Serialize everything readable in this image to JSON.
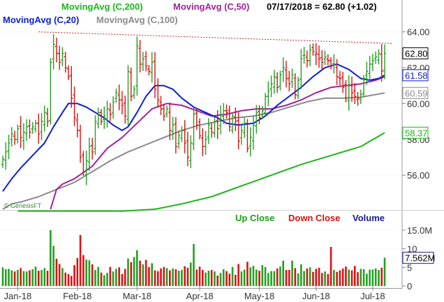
{
  "header": {
    "ma200": "MovingAvg (C,200)",
    "ma50": "MovingAvg (C,50)",
    "quote": "07/17/2018 = 62.80 (+1.02)",
    "ma20": "MovingAvg (C,20)",
    "ma100": "MovingAvg (C,100)"
  },
  "watermark": "© GenesisFT",
  "volume_legend": {
    "up": "Up Close",
    "down": "Down Close",
    "volume": "Volume"
  },
  "colors": {
    "up": "#22a022",
    "down": "#dd1111",
    "ma200": "#19b819",
    "ma50": "#a0229f",
    "ma20": "#0b1fd6",
    "ma100": "#8a8a8a",
    "volume": "#1a1a8c",
    "resistance": "#cc2222"
  },
  "chart_data": [
    {
      "type": "candlestick",
      "ylim": [
        54.1,
        65.0
      ],
      "yticks": [
        "64.00",
        "62.00",
        "60.00",
        "58.00",
        "56.00"
      ],
      "ytick_values": [
        64,
        62,
        60,
        58,
        56
      ],
      "xticks": [
        "Jan-18",
        "Feb-18",
        "Mar-18",
        "Apr-18",
        "May-18",
        "Jun-18",
        "Jul-18"
      ],
      "xtick_index": [
        5,
        25,
        45,
        66,
        86,
        105,
        124
      ],
      "price_tags": [
        {
          "label": "62.80",
          "value": 62.8,
          "color": "#000000"
        },
        {
          "label": "61.58",
          "value": 61.58,
          "color": "#0b1fd6"
        },
        {
          "label": "60.59",
          "value": 60.59,
          "color": "#8a8a8a"
        },
        {
          "label": "58.37",
          "value": 58.37,
          "color": "#19b819"
        }
      ],
      "resistance": [
        64.0,
        63.35
      ],
      "close": [
        56.9,
        57.3,
        57.8,
        58.3,
        58.0,
        58.6,
        58.1,
        58.4,
        58.7,
        58.4,
        58.7,
        58.9,
        58.3,
        59.0,
        59.5,
        59.0,
        62.3,
        63.3,
        62.8,
        62.3,
        62.8,
        62.0,
        61.5,
        60.3,
        59.2,
        58.5,
        57.0,
        56.2,
        56.8,
        57.6,
        57.3,
        59.0,
        59.5,
        59.0,
        59.3,
        59.7,
        59.4,
        60.1,
        60.6,
        60.2,
        59.9,
        59.3,
        61.8,
        60.4,
        60.8,
        63.2,
        62.2,
        62.5,
        62.1,
        61.8,
        62.3,
        60.8,
        60.2,
        59.7,
        59.3,
        59.7,
        58.5,
        58.8,
        57.6,
        58.2,
        58.5,
        57.8,
        57.0,
        57.8,
        59.4,
        58.8,
        58.2,
        57.6,
        58.0,
        58.8,
        58.4,
        59.0,
        58.6,
        59.4,
        59.6,
        59.5,
        58.7,
        59.3,
        59.0,
        57.9,
        58.5,
        58.9,
        57.5,
        58.1,
        58.8,
        59.5,
        59.2,
        59.6,
        60.4,
        60.7,
        61.1,
        61.5,
        60.9,
        61.6,
        62.0,
        61.4,
        61.1,
        61.6,
        60.5,
        61.3,
        62.5,
        62.7,
        62.4,
        63.0,
        62.9,
        62.8,
        62.5,
        62.3,
        62.6,
        62.4,
        62.1,
        62.2,
        61.5,
        61.4,
        60.9,
        60.3,
        61.0,
        60.6,
        60.4,
        60.3,
        60.5,
        61.4,
        61.8,
        62.2,
        62.4,
        62.6,
        62.8,
        61.8,
        62.8
      ],
      "volume_m": [
        5.0,
        4.5,
        4.6,
        4.2,
        3.9,
        4.3,
        4.8,
        4.0,
        3.9,
        4.2,
        4.5,
        5.2,
        4.1,
        4.3,
        4.8,
        4.1,
        15.0,
        10.8,
        7.3,
        5.9,
        4.8,
        3.6,
        3.2,
        2.7,
        5.6,
        7.5,
        13.7,
        8.3,
        7.1,
        6.9,
        5.8,
        4.3,
        5.1,
        3.6,
        2.9,
        3.5,
        5.1,
        3.9,
        4.6,
        5.0,
        3.2,
        4.6,
        7.4,
        6.4,
        7.8,
        9.6,
        6.8,
        5.8,
        7.0,
        5.1,
        6.1,
        4.2,
        4.0,
        4.7,
        5.1,
        4.8,
        4.2,
        4.7,
        4.5,
        4.1,
        4.3,
        5.3,
        4.9,
        6.3,
        11.3,
        4.4,
        5.2,
        4.3,
        3.6,
        4.1,
        4.3,
        3.9,
        2.8,
        3.5,
        4.5,
        4.0,
        3.3,
        5.1,
        3.0,
        5.9,
        3.9,
        4.4,
        6.5,
        5.0,
        5.4,
        4.4,
        4.1,
        5.6,
        5.1,
        3.5,
        4.0,
        4.0,
        4.7,
        5.2,
        6.8,
        4.3,
        4.3,
        6.8,
        4.8,
        3.4,
        5.8,
        4.0,
        4.7,
        5.0,
        3.8,
        4.6,
        4.9,
        3.5,
        3.9,
        3.2,
        10.5,
        4.3,
        3.8,
        4.2,
        4.7,
        5.2,
        4.4,
        4.2,
        5.4,
        3.7,
        4.6,
        4.5,
        3.3,
        4.4,
        4.4,
        4.7,
        4.3,
        4.9,
        7.6
      ],
      "ma200": [
        {
          "i": 5,
          "v": 54.0
        },
        {
          "i": 20,
          "v": 54.0
        },
        {
          "i": 40,
          "v": 54.0
        },
        {
          "i": 51,
          "v": 54.1
        },
        {
          "i": 60,
          "v": 54.4
        },
        {
          "i": 70,
          "v": 54.8
        },
        {
          "i": 80,
          "v": 55.4
        },
        {
          "i": 90,
          "v": 56.0
        },
        {
          "i": 100,
          "v": 56.6
        },
        {
          "i": 110,
          "v": 57.1
        },
        {
          "i": 120,
          "v": 57.6
        },
        {
          "i": 128,
          "v": 58.37
        }
      ],
      "ma100": [
        {
          "i": 0,
          "v": 54.1
        },
        {
          "i": 3,
          "v": 54.4
        },
        {
          "i": 6,
          "v": 54.5
        },
        {
          "i": 12,
          "v": 54.8
        },
        {
          "i": 18,
          "v": 55.2
        },
        {
          "i": 24,
          "v": 55.6
        },
        {
          "i": 30,
          "v": 56.2
        },
        {
          "i": 36,
          "v": 56.8
        },
        {
          "i": 42,
          "v": 57.3
        },
        {
          "i": 48,
          "v": 57.7
        },
        {
          "i": 54,
          "v": 58.1
        },
        {
          "i": 60,
          "v": 58.5
        },
        {
          "i": 66,
          "v": 58.8
        },
        {
          "i": 72,
          "v": 59.0
        },
        {
          "i": 78,
          "v": 59.2
        },
        {
          "i": 84,
          "v": 59.3
        },
        {
          "i": 90,
          "v": 59.5
        },
        {
          "i": 96,
          "v": 59.8
        },
        {
          "i": 102,
          "v": 60.1
        },
        {
          "i": 108,
          "v": 60.3
        },
        {
          "i": 114,
          "v": 60.3
        },
        {
          "i": 120,
          "v": 60.35
        },
        {
          "i": 128,
          "v": 60.59
        }
      ],
      "ma50": [
        {
          "i": 16,
          "v": 54.1
        },
        {
          "i": 18,
          "v": 55.2
        },
        {
          "i": 20,
          "v": 55.5
        },
        {
          "i": 24,
          "v": 55.8
        },
        {
          "i": 30,
          "v": 56.5
        },
        {
          "i": 35,
          "v": 57.5
        },
        {
          "i": 40,
          "v": 58.1
        },
        {
          "i": 45,
          "v": 58.9
        },
        {
          "i": 50,
          "v": 59.7
        },
        {
          "i": 55,
          "v": 60.0
        },
        {
          "i": 60,
          "v": 59.9
        },
        {
          "i": 65,
          "v": 59.6
        },
        {
          "i": 70,
          "v": 59.3
        },
        {
          "i": 75,
          "v": 59.4
        },
        {
          "i": 80,
          "v": 59.6
        },
        {
          "i": 85,
          "v": 59.7
        },
        {
          "i": 90,
          "v": 59.7
        },
        {
          "i": 95,
          "v": 59.9
        },
        {
          "i": 100,
          "v": 60.2
        },
        {
          "i": 105,
          "v": 60.6
        },
        {
          "i": 110,
          "v": 60.9
        },
        {
          "i": 115,
          "v": 61.0
        },
        {
          "i": 120,
          "v": 61.1
        },
        {
          "i": 125,
          "v": 61.3
        },
        {
          "i": 128,
          "v": 61.5
        }
      ],
      "ma20": [
        {
          "i": 0,
          "v": 55.1
        },
        {
          "i": 3,
          "v": 55.8
        },
        {
          "i": 6,
          "v": 56.4
        },
        {
          "i": 10,
          "v": 57.1
        },
        {
          "i": 14,
          "v": 57.8
        },
        {
          "i": 17,
          "v": 58.7
        },
        {
          "i": 20,
          "v": 59.5
        },
        {
          "i": 22,
          "v": 60.0
        },
        {
          "i": 25,
          "v": 60.0
        },
        {
          "i": 28,
          "v": 59.8
        },
        {
          "i": 31,
          "v": 59.5
        },
        {
          "i": 34,
          "v": 59.2
        },
        {
          "i": 37,
          "v": 58.8
        },
        {
          "i": 40,
          "v": 58.5
        },
        {
          "i": 42,
          "v": 58.7
        },
        {
          "i": 45,
          "v": 59.5
        },
        {
          "i": 48,
          "v": 60.4
        },
        {
          "i": 51,
          "v": 61.0
        },
        {
          "i": 54,
          "v": 61.0
        },
        {
          "i": 57,
          "v": 60.8
        },
        {
          "i": 60,
          "v": 60.3
        },
        {
          "i": 64,
          "v": 59.8
        },
        {
          "i": 68,
          "v": 59.5
        },
        {
          "i": 72,
          "v": 59.2
        },
        {
          "i": 75,
          "v": 58.9
        },
        {
          "i": 79,
          "v": 58.8
        },
        {
          "i": 84,
          "v": 58.9
        },
        {
          "i": 88,
          "v": 59.3
        },
        {
          "i": 92,
          "v": 59.9
        },
        {
          "i": 96,
          "v": 60.4
        },
        {
          "i": 100,
          "v": 60.9
        },
        {
          "i": 104,
          "v": 61.5
        },
        {
          "i": 108,
          "v": 62.0
        },
        {
          "i": 112,
          "v": 62.2
        },
        {
          "i": 116,
          "v": 61.9
        },
        {
          "i": 120,
          "v": 61.4
        },
        {
          "i": 123,
          "v": 61.3
        },
        {
          "i": 126,
          "v": 61.4
        },
        {
          "i": 128,
          "v": 61.58
        }
      ]
    },
    {
      "type": "bar",
      "ylim": [
        0,
        16.5
      ],
      "yticks": [
        "15.0M",
        "10",
        "5",
        "0"
      ],
      "ytick_values": [
        15,
        10,
        5,
        0
      ],
      "last_volume_tag": {
        "label": "7.562M",
        "value": 7.562
      }
    }
  ]
}
